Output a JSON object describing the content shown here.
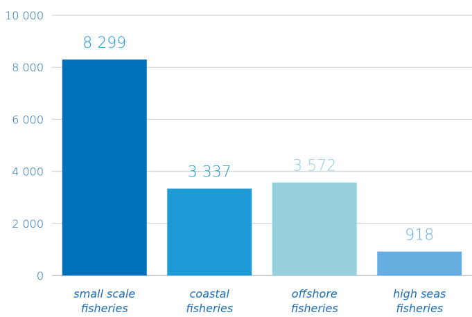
{
  "chart_data": {
    "type": "bar",
    "categories": [
      [
        "small scale",
        "fisheries"
      ],
      [
        "coastal",
        "fisheries"
      ],
      [
        "offshore",
        "fisheries"
      ],
      [
        "high seas",
        "fisheries"
      ]
    ],
    "values": [
      8299,
      3337,
      3572,
      918
    ],
    "value_labels": [
      "8 299",
      "3 337",
      "3 572",
      "918"
    ],
    "bar_colors": [
      "#0171bb",
      "#1b9ad6",
      "#96d0dd",
      "#66ade0"
    ],
    "value_label_colors": [
      "#1b9ad6",
      "#1b9ad6",
      "#8fcfe0",
      "#66ade0"
    ],
    "ylim": [
      0,
      10000
    ],
    "yticks": [
      0,
      2000,
      4000,
      6000,
      8000,
      10000
    ],
    "ytick_labels": [
      "0",
      "2 000",
      "4 000",
      "6 000",
      "8 000",
      "10 000"
    ],
    "title": "",
    "xlabel": "",
    "ylabel": "",
    "grid": true
  }
}
